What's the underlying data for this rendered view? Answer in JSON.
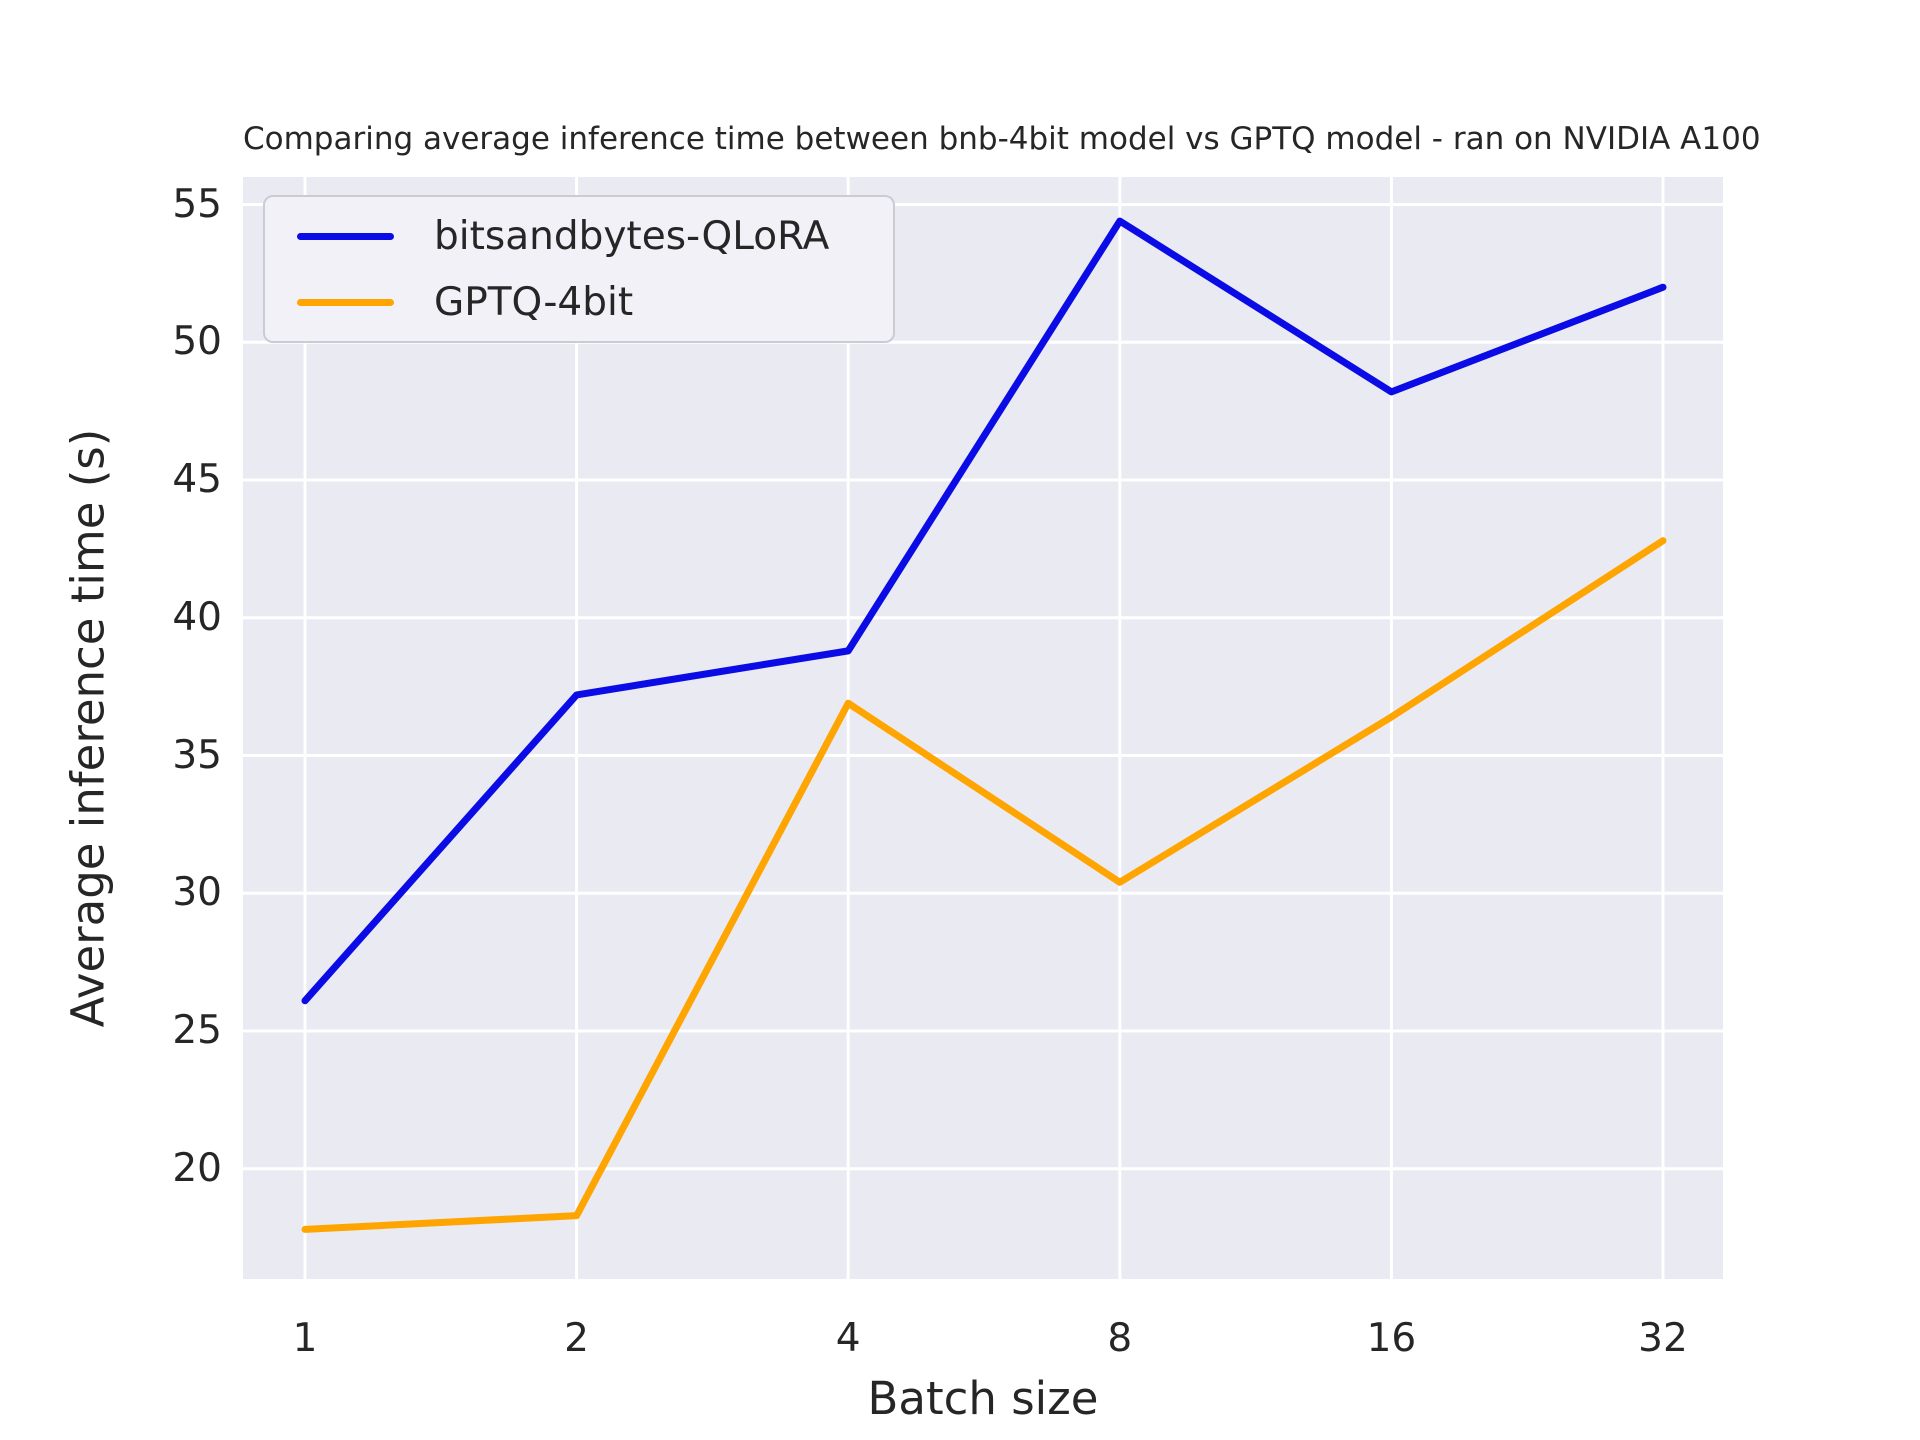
{
  "chart_data": {
    "type": "line",
    "title": "Comparing average inference time between bnb-4bit model vs GPTQ model - ran on NVIDIA A100",
    "xlabel": "Batch size",
    "ylabel": "Average inference time (s)",
    "categories": [
      "1",
      "2",
      "4",
      "8",
      "16",
      "32"
    ],
    "ylim": [
      16,
      56
    ],
    "yticks": [
      20,
      25,
      30,
      35,
      40,
      45,
      50,
      55
    ],
    "grid": true,
    "legend_position": "upper left",
    "plot_background": "#eaeaf2",
    "gridline_color": "#ffffff",
    "text_color": "#262626",
    "series": [
      {
        "name": "bitsandbytes-QLoRA",
        "color": "#0b0be6",
        "values": [
          26.1,
          37.2,
          38.8,
          54.4,
          48.2,
          52.0
        ]
      },
      {
        "name": "GPTQ-4bit",
        "color": "#ffa502",
        "values": [
          17.8,
          18.3,
          36.9,
          30.4,
          36.4,
          42.8
        ]
      }
    ]
  }
}
